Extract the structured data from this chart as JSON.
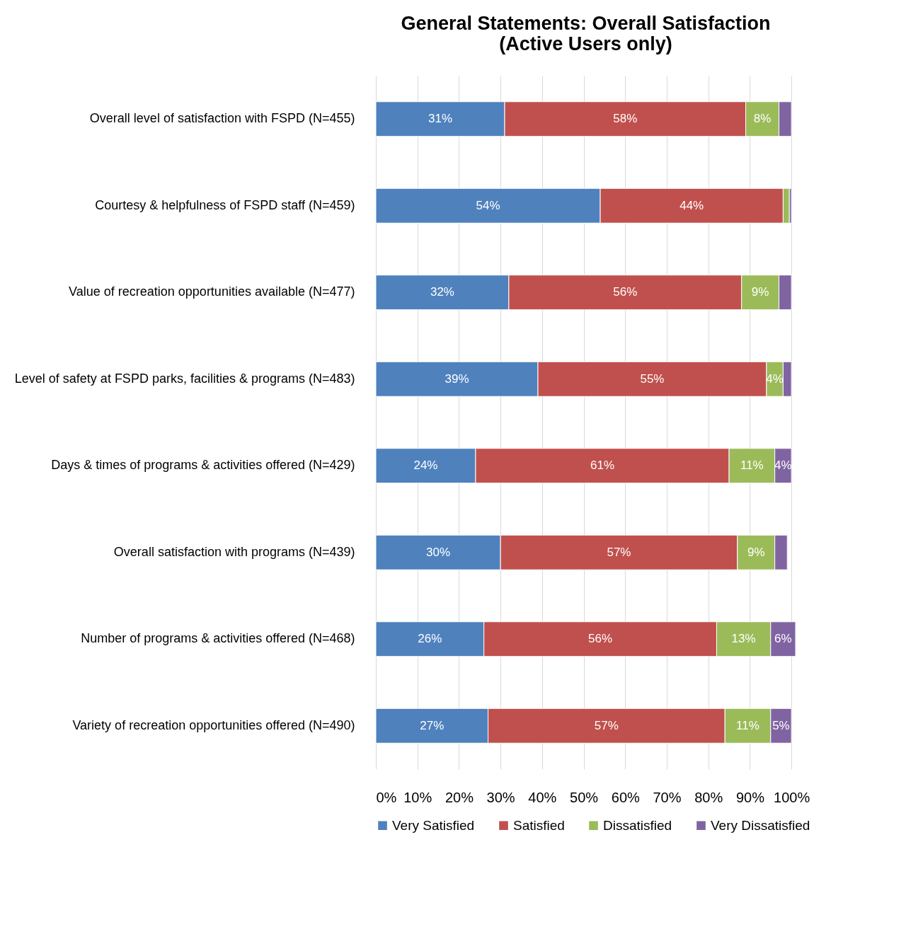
{
  "chart_data": {
    "type": "bar",
    "orientation": "horizontal",
    "stacked": true,
    "title": "General Statements: Overall Satisfaction\n(Active Users only)",
    "categories": [
      "Overall level of satisfaction with FSPD (N=455)",
      "Courtesy & helpfulness of FSPD staff (N=459)",
      "Value of recreation opportunities available (N=477)",
      "Level of safety at FSPD parks, facilities & programs (N=483)",
      "Days & times of programs & activities offered (N=429)",
      "Overall satisfaction with programs (N=439)",
      "Number of programs & activities offered (N=468)",
      "Variety of recreation opportunities offered (N=490)"
    ],
    "series": [
      {
        "name": "Very Satisfied",
        "color": "#4f81bd",
        "values": [
          31,
          54,
          32,
          39,
          24,
          30,
          26,
          27
        ],
        "value_labels": [
          "31%",
          "54%",
          "32%",
          "39%",
          "24%",
          "30%",
          "26%",
          "27%"
        ]
      },
      {
        "name": "Satisfied",
        "color": "#c0504d",
        "values": [
          58,
          44,
          56,
          55,
          61,
          57,
          56,
          57
        ],
        "value_labels": [
          "58%",
          "44%",
          "56%",
          "55%",
          "61%",
          "57%",
          "56%",
          "57%"
        ]
      },
      {
        "name": "Dissatisfied",
        "color": "#9bbb59",
        "values": [
          8,
          1.5,
          9,
          4,
          11,
          9,
          13,
          11
        ],
        "value_labels": [
          "8%",
          null,
          "9%",
          "4%",
          "11%",
          "9%",
          "13%",
          "11%"
        ]
      },
      {
        "name": "Very Dissatisfied",
        "color": "#8064a2",
        "values": [
          3,
          0.5,
          3,
          2,
          4,
          3,
          6,
          5
        ],
        "value_labels": [
          null,
          null,
          null,
          null,
          "4%",
          null,
          "6%",
          "5%"
        ]
      }
    ],
    "xlim": [
      0,
      101
    ],
    "xticks": [
      {
        "value": 0,
        "label": "0%"
      },
      {
        "value": 10,
        "label": "10%"
      },
      {
        "value": 20,
        "label": "20%"
      },
      {
        "value": 30,
        "label": "30%"
      },
      {
        "value": 40,
        "label": "40%"
      },
      {
        "value": 50,
        "label": "50%"
      },
      {
        "value": 60,
        "label": "60%"
      },
      {
        "value": 70,
        "label": "70%"
      },
      {
        "value": 80,
        "label": "80%"
      },
      {
        "value": 90,
        "label": "90%"
      },
      {
        "value": 100,
        "label": "100%"
      }
    ],
    "grid": "x",
    "legend": "bottom"
  }
}
